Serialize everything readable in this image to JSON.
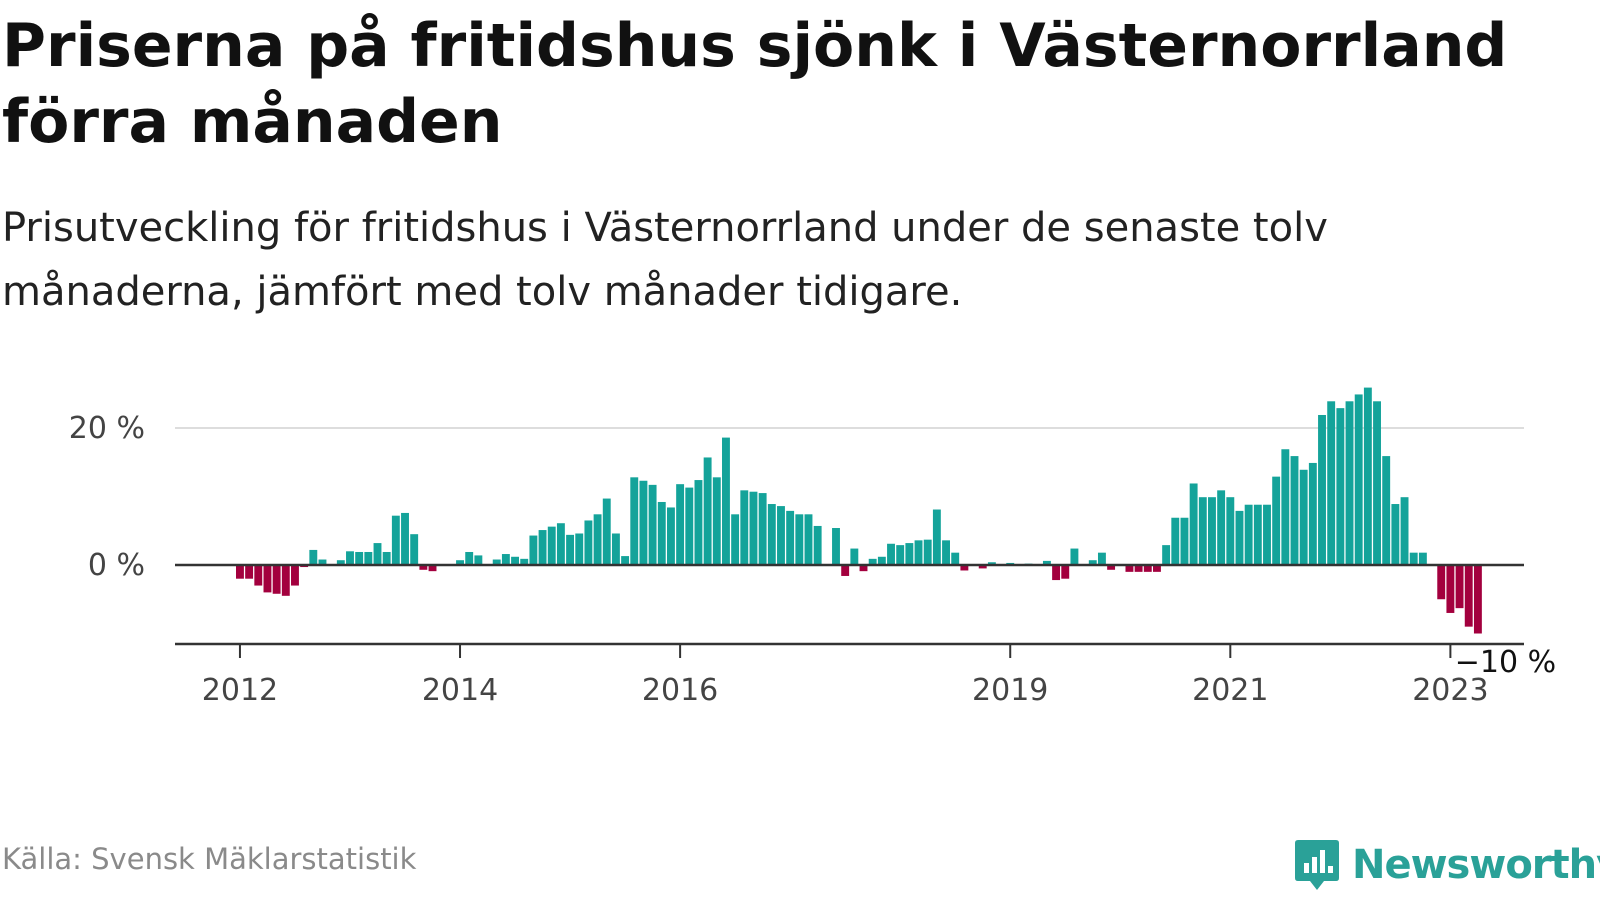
{
  "title": "Priserna på fritidshus sjönk i Västernorrland förra månaden",
  "subtitle": "Prisutveckling för fritidshus i Västernorrland under de senaste tolv månaderna, jämfört med tolv månader tidigare.",
  "source": "Källa: Svensk Mäklarstatistik",
  "brand": "Newsworthy",
  "colors": {
    "positive": "#14a39a",
    "negative": "#a3003e",
    "grid": "#dddddd",
    "baseline": "#333333",
    "brand": "#2aa198"
  },
  "chart_data": {
    "type": "bar",
    "title": "Priserna på fritidshus sjönk i Västernorrland förra månaden",
    "unit": "%",
    "x_start": "2012-01",
    "y_ticks": [
      0,
      20
    ],
    "y_tick_labels": [
      "0 %",
      "20 %"
    ],
    "ylim": [
      -11,
      27
    ],
    "grid": true,
    "x_ticks": [
      {
        "label": "2012",
        "date": "2012-01"
      },
      {
        "label": "2014",
        "date": "2014-01"
      },
      {
        "label": "2016",
        "date": "2016-01"
      },
      {
        "label": "2019",
        "date": "2019-01"
      },
      {
        "label": "2021",
        "date": "2021-01"
      },
      {
        "label": "2023",
        "date": "2023-01"
      }
    ],
    "annotation": {
      "text": "−10 %",
      "date": "2023-07"
    },
    "values": [
      -2,
      -2,
      -3,
      -4,
      -4.2,
      -4.5,
      -3,
      -0.3,
      2.2,
      0.8,
      null,
      0.7,
      2,
      1.9,
      1.9,
      3.2,
      1.9,
      7.2,
      7.6,
      4.5,
      -0.7,
      -0.9,
      null,
      null,
      0.7,
      1.9,
      1.4,
      null,
      0.8,
      1.6,
      1.2,
      0.9,
      4.3,
      5.1,
      5.6,
      6.1,
      4.4,
      4.6,
      6.5,
      7.4,
      9.7,
      4.6,
      1.3,
      12.8,
      12.3,
      11.7,
      9.2,
      8.4,
      11.8,
      11.3,
      12.4,
      15.7,
      12.8,
      18.6,
      7.4,
      10.9,
      10.7,
      10.5,
      8.9,
      8.6,
      7.9,
      7.4,
      7.4,
      5.7,
      null,
      5.4,
      -1.6,
      2.4,
      -0.9,
      0.9,
      1.2,
      3.1,
      2.9,
      3.2,
      3.6,
      3.7,
      8.1,
      3.6,
      1.8,
      -0.8,
      null,
      -0.5,
      0.4,
      null,
      0.3,
      null,
      0.2,
      null,
      0.6,
      -2.2,
      -2,
      2.4,
      null,
      0.7,
      1.8,
      -0.7,
      null,
      -1,
      -1,
      -1,
      -1,
      2.9,
      6.9,
      6.9,
      11.9,
      9.9,
      9.9,
      10.9,
      9.9,
      7.9,
      8.8,
      8.8,
      8.8,
      12.9,
      16.9,
      15.9,
      13.9,
      14.9,
      21.9,
      23.9,
      22.9,
      23.9,
      24.9,
      25.9,
      23.9,
      15.9,
      8.9,
      9.9,
      1.8,
      1.8,
      null,
      -5,
      -7,
      -6.3,
      -9,
      -10
    ]
  }
}
